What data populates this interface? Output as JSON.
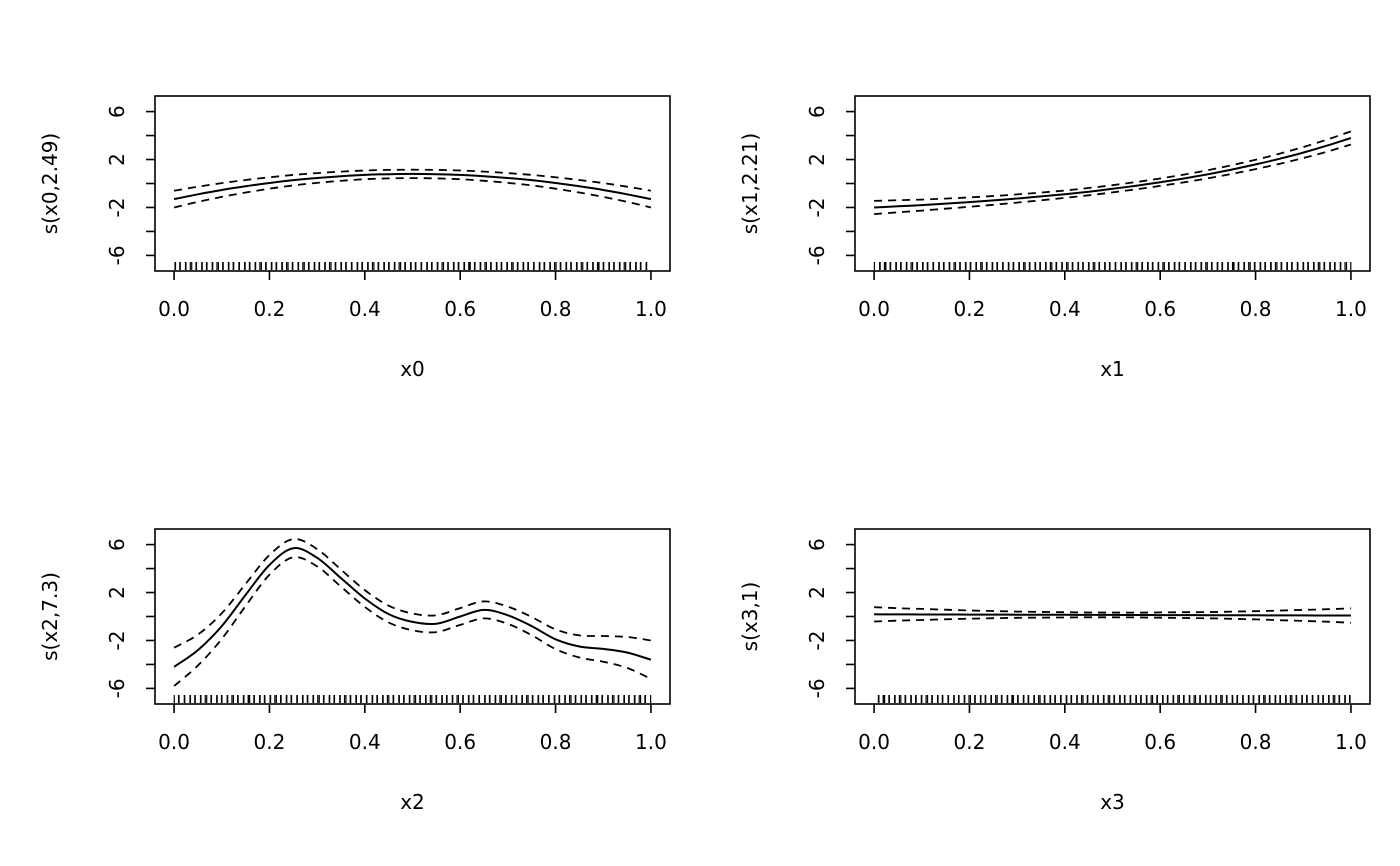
{
  "figure": {
    "background": "#ffffff",
    "line_color": "#000000",
    "layout": "2x2 grid of GAM smooth-term plots"
  },
  "chart_data": [
    {
      "type": "line",
      "xlabel": "x0",
      "ylabel": "s(x0,2.49)",
      "xlim": [
        -0.04,
        1.04
      ],
      "ylim": [
        -7.3,
        7.3
      ],
      "grid": "off",
      "legend": "none",
      "x_ticks": [
        0.0,
        0.2,
        0.4,
        0.6,
        0.8,
        1.0
      ],
      "x_tick_labels": [
        "0.0",
        "0.2",
        "0.4",
        "0.6",
        "0.8",
        "1.0"
      ],
      "y_ticks_all": [
        -6,
        -4,
        -2,
        0,
        2,
        4,
        6
      ],
      "y_ticks_labeled": [
        {
          "v": -6,
          "label": "-6"
        },
        {
          "v": -2,
          "label": "-2"
        },
        {
          "v": 2,
          "label": "2"
        },
        {
          "v": 6,
          "label": "6"
        }
      ],
      "lines": {
        "fit": "solid",
        "confidence_band": "dashed"
      },
      "x": [
        0,
        0.05,
        0.1,
        0.15,
        0.2,
        0.25,
        0.3,
        0.35,
        0.4,
        0.45,
        0.5,
        0.55,
        0.6,
        0.65,
        0.7,
        0.75,
        0.8,
        0.85,
        0.9,
        0.95,
        1
      ],
      "fit": [
        -1.3,
        -0.9,
        -0.54,
        -0.23,
        0.04,
        0.28,
        0.46,
        0.61,
        0.72,
        0.78,
        0.8,
        0.78,
        0.72,
        0.61,
        0.46,
        0.28,
        0.04,
        -0.23,
        -0.54,
        -0.9,
        -1.3
      ],
      "ci_halfwidth": [
        0.7,
        0.633,
        0.574,
        0.522,
        0.476,
        0.438,
        0.406,
        0.382,
        0.364,
        0.354,
        0.35,
        0.354,
        0.364,
        0.382,
        0.406,
        0.438,
        0.476,
        0.522,
        0.574,
        0.633,
        0.7
      ]
    },
    {
      "type": "line",
      "xlabel": "x1",
      "ylabel": "s(x1,2.21)",
      "xlim": [
        -0.04,
        1.04
      ],
      "ylim": [
        -7.3,
        7.3
      ],
      "grid": "off",
      "legend": "none",
      "x_ticks": [
        0.0,
        0.2,
        0.4,
        0.6,
        0.8,
        1.0
      ],
      "x_tick_labels": [
        "0.0",
        "0.2",
        "0.4",
        "0.6",
        "0.8",
        "1.0"
      ],
      "y_ticks_all": [
        -6,
        -4,
        -2,
        0,
        2,
        4,
        6
      ],
      "y_ticks_labeled": [
        {
          "v": -6,
          "label": "-6"
        },
        {
          "v": -2,
          "label": "-2"
        },
        {
          "v": 2,
          "label": "2"
        },
        {
          "v": 6,
          "label": "6"
        }
      ],
      "lines": {
        "fit": "solid",
        "confidence_band": "dashed"
      },
      "x": [
        0,
        0.05,
        0.1,
        0.15,
        0.2,
        0.25,
        0.3,
        0.35,
        0.4,
        0.45,
        0.5,
        0.55,
        0.6,
        0.65,
        0.7,
        0.75,
        0.8,
        0.85,
        0.9,
        0.95,
        1
      ],
      "fit": [
        -2.0,
        -1.9,
        -1.8,
        -1.68,
        -1.55,
        -1.41,
        -1.25,
        -1.08,
        -0.89,
        -0.68,
        -0.44,
        -0.18,
        0.11,
        0.42,
        0.77,
        1.16,
        1.59,
        2.06,
        2.58,
        3.16,
        3.8
      ],
      "ci_halfwidth": [
        0.55,
        0.503,
        0.46,
        0.423,
        0.39,
        0.363,
        0.34,
        0.323,
        0.31,
        0.303,
        0.3,
        0.303,
        0.31,
        0.323,
        0.34,
        0.363,
        0.39,
        0.423,
        0.46,
        0.503,
        0.55
      ]
    },
    {
      "type": "line",
      "xlabel": "x2",
      "ylabel": "s(x2,7.3)",
      "xlim": [
        -0.04,
        1.04
      ],
      "ylim": [
        -7.3,
        7.3
      ],
      "grid": "off",
      "legend": "none",
      "x_ticks": [
        0.0,
        0.2,
        0.4,
        0.6,
        0.8,
        1.0
      ],
      "x_tick_labels": [
        "0.0",
        "0.2",
        "0.4",
        "0.6",
        "0.8",
        "1.0"
      ],
      "y_ticks_all": [
        -6,
        -4,
        -2,
        0,
        2,
        4,
        6
      ],
      "y_ticks_labeled": [
        {
          "v": -6,
          "label": "-6"
        },
        {
          "v": -2,
          "label": "-2"
        },
        {
          "v": 2,
          "label": "2"
        },
        {
          "v": 6,
          "label": "6"
        }
      ],
      "lines": {
        "fit": "solid",
        "confidence_band": "dashed"
      },
      "x": [
        0,
        0.05,
        0.1,
        0.15,
        0.2,
        0.25,
        0.3,
        0.35,
        0.4,
        0.45,
        0.5,
        0.55,
        0.6,
        0.65,
        0.7,
        0.75,
        0.8,
        0.85,
        0.9,
        0.95,
        1
      ],
      "fit": [
        -4.2,
        -2.8,
        -0.8,
        1.8,
        4.3,
        5.7,
        4.9,
        3.2,
        1.5,
        0.2,
        -0.45,
        -0.6,
        0.0,
        0.55,
        0.1,
        -0.8,
        -1.9,
        -2.5,
        -2.7,
        -3.0,
        -3.6
      ],
      "ci_halfwidth": [
        1.6,
        1.29,
        1.07,
        0.92,
        0.82,
        0.76,
        0.72,
        0.71,
        0.7,
        0.7,
        0.7,
        0.7,
        0.7,
        0.71,
        0.72,
        0.76,
        0.82,
        0.92,
        1.07,
        1.29,
        1.6
      ]
    },
    {
      "type": "line",
      "xlabel": "x3",
      "ylabel": "s(x3,1)",
      "xlim": [
        -0.04,
        1.04
      ],
      "ylim": [
        -7.3,
        7.3
      ],
      "grid": "off",
      "legend": "none",
      "x_ticks": [
        0.0,
        0.2,
        0.4,
        0.6,
        0.8,
        1.0
      ],
      "x_tick_labels": [
        "0.0",
        "0.2",
        "0.4",
        "0.6",
        "0.8",
        "1.0"
      ],
      "y_ticks_all": [
        -6,
        -4,
        -2,
        0,
        2,
        4,
        6
      ],
      "y_ticks_labeled": [
        {
          "v": -6,
          "label": "-6"
        },
        {
          "v": -2,
          "label": "-2"
        },
        {
          "v": 2,
          "label": "2"
        },
        {
          "v": 6,
          "label": "6"
        }
      ],
      "lines": {
        "fit": "solid",
        "confidence_band": "dashed"
      },
      "x": [
        0,
        0.05,
        0.1,
        0.15,
        0.2,
        0.25,
        0.3,
        0.35,
        0.4,
        0.45,
        0.5,
        0.55,
        0.6,
        0.65,
        0.7,
        0.75,
        0.8,
        0.85,
        0.9,
        0.95,
        1
      ],
      "fit": [
        0.18,
        0.175,
        0.17,
        0.165,
        0.16,
        0.155,
        0.15,
        0.145,
        0.14,
        0.135,
        0.13,
        0.125,
        0.12,
        0.115,
        0.11,
        0.105,
        0.1,
        0.095,
        0.09,
        0.085,
        0.08
      ],
      "ci_halfwidth": [
        0.6,
        0.52,
        0.46,
        0.4,
        0.34,
        0.3,
        0.26,
        0.24,
        0.22,
        0.2,
        0.2,
        0.2,
        0.22,
        0.24,
        0.26,
        0.3,
        0.34,
        0.4,
        0.46,
        0.52,
        0.6
      ]
    }
  ],
  "rug_positions": [
    0.618,
    0.236,
    0.854,
    0.472,
    0.09,
    0.708,
    0.326,
    0.944,
    0.562,
    0.18,
    0.798,
    0.416,
    0.034,
    0.652,
    0.27,
    0.888,
    0.506,
    0.124,
    0.742,
    0.36,
    0.978,
    0.596,
    0.214,
    0.832,
    0.45,
    0.068,
    0.686,
    0.304,
    0.922,
    0.54,
    0.158,
    0.776,
    0.394,
    0.012,
    0.63,
    0.248,
    0.866,
    0.484,
    0.102,
    0.72,
    0.338,
    0.956,
    0.574,
    0.192,
    0.81,
    0.428,
    0.046,
    0.664,
    0.282,
    0.9,
    0.518,
    0.136,
    0.754,
    0.372,
    0.99,
    0.608,
    0.226,
    0.844,
    0.462,
    0.08,
    0.698,
    0.316,
    0.934,
    0.552,
    0.17,
    0.788,
    0.406,
    0.024,
    0.642,
    0.26,
    0.878,
    0.496,
    0.114,
    0.732,
    0.35,
    0.968,
    0.586,
    0.204,
    0.822,
    0.44,
    0.058,
    0.676,
    0.294,
    0.912,
    0.53,
    0.148,
    0.766,
    0.384,
    0.002,
    0.62
  ]
}
